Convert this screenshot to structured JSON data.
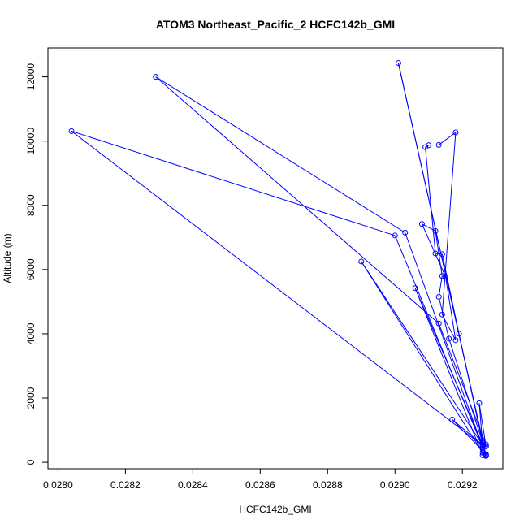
{
  "chart_data": {
    "type": "line",
    "title": "ATOM3 Northeast_Pacific_2 HCFC142b_GMI",
    "xlabel": "HCFC142b_GMI",
    "ylabel": "Altitude (m)",
    "xlim": [
      0.02797,
      0.02932
    ],
    "ylim": [
      -200,
      12900
    ],
    "x_ticks": [
      0.028,
      0.0282,
      0.0284,
      0.0286,
      0.0288,
      0.029,
      0.0292
    ],
    "x_tick_labels": [
      "0.0280",
      "0.0282",
      "0.0284",
      "0.0286",
      "0.0288",
      "0.0290",
      "0.0292"
    ],
    "y_ticks": [
      0,
      2000,
      4000,
      6000,
      8000,
      10000,
      12000
    ],
    "y_tick_labels": [
      "0",
      "2000",
      "4000",
      "6000",
      "8000",
      "10000",
      "12000"
    ],
    "grid": false,
    "colors": {
      "series": "#0000ff",
      "axis": "#000000"
    },
    "series": [
      {
        "x": [
          0.02926,
          0.02916,
          0.02913,
          0.02914,
          0.02912,
          0.02908,
          0.02915,
          0.02918,
          0.02914,
          0.02918,
          0.02913,
          0.0291,
          0.02909,
          0.02912,
          0.02914,
          0.02919,
          0.02926,
          0.02927,
          0.02926,
          0.02903,
          0.02829,
          0.02913,
          0.02927,
          0.02927,
          0.02925,
          0.02926,
          0.02917,
          0.02927,
          0.02927,
          0.02926,
          0.02906,
          0.02926,
          0.02926,
          0.029,
          0.02804,
          0.02926,
          0.02927,
          0.02926,
          0.0289,
          0.02926,
          0.02927,
          0.02901,
          0.02927
        ],
        "y": [
          620,
          3850,
          5150,
          5800,
          7200,
          7420,
          5780,
          3800,
          4600,
          10270,
          9880,
          9870,
          9810,
          6500,
          6480,
          4000,
          600,
          500,
          480,
          7150,
          12000,
          4320,
          560,
          500,
          1840,
          540,
          1330,
          250,
          200,
          220,
          5420,
          560,
          480,
          7060,
          10310,
          520,
          230,
          300,
          6250,
          540,
          220,
          12430,
          200
        ]
      }
    ]
  }
}
